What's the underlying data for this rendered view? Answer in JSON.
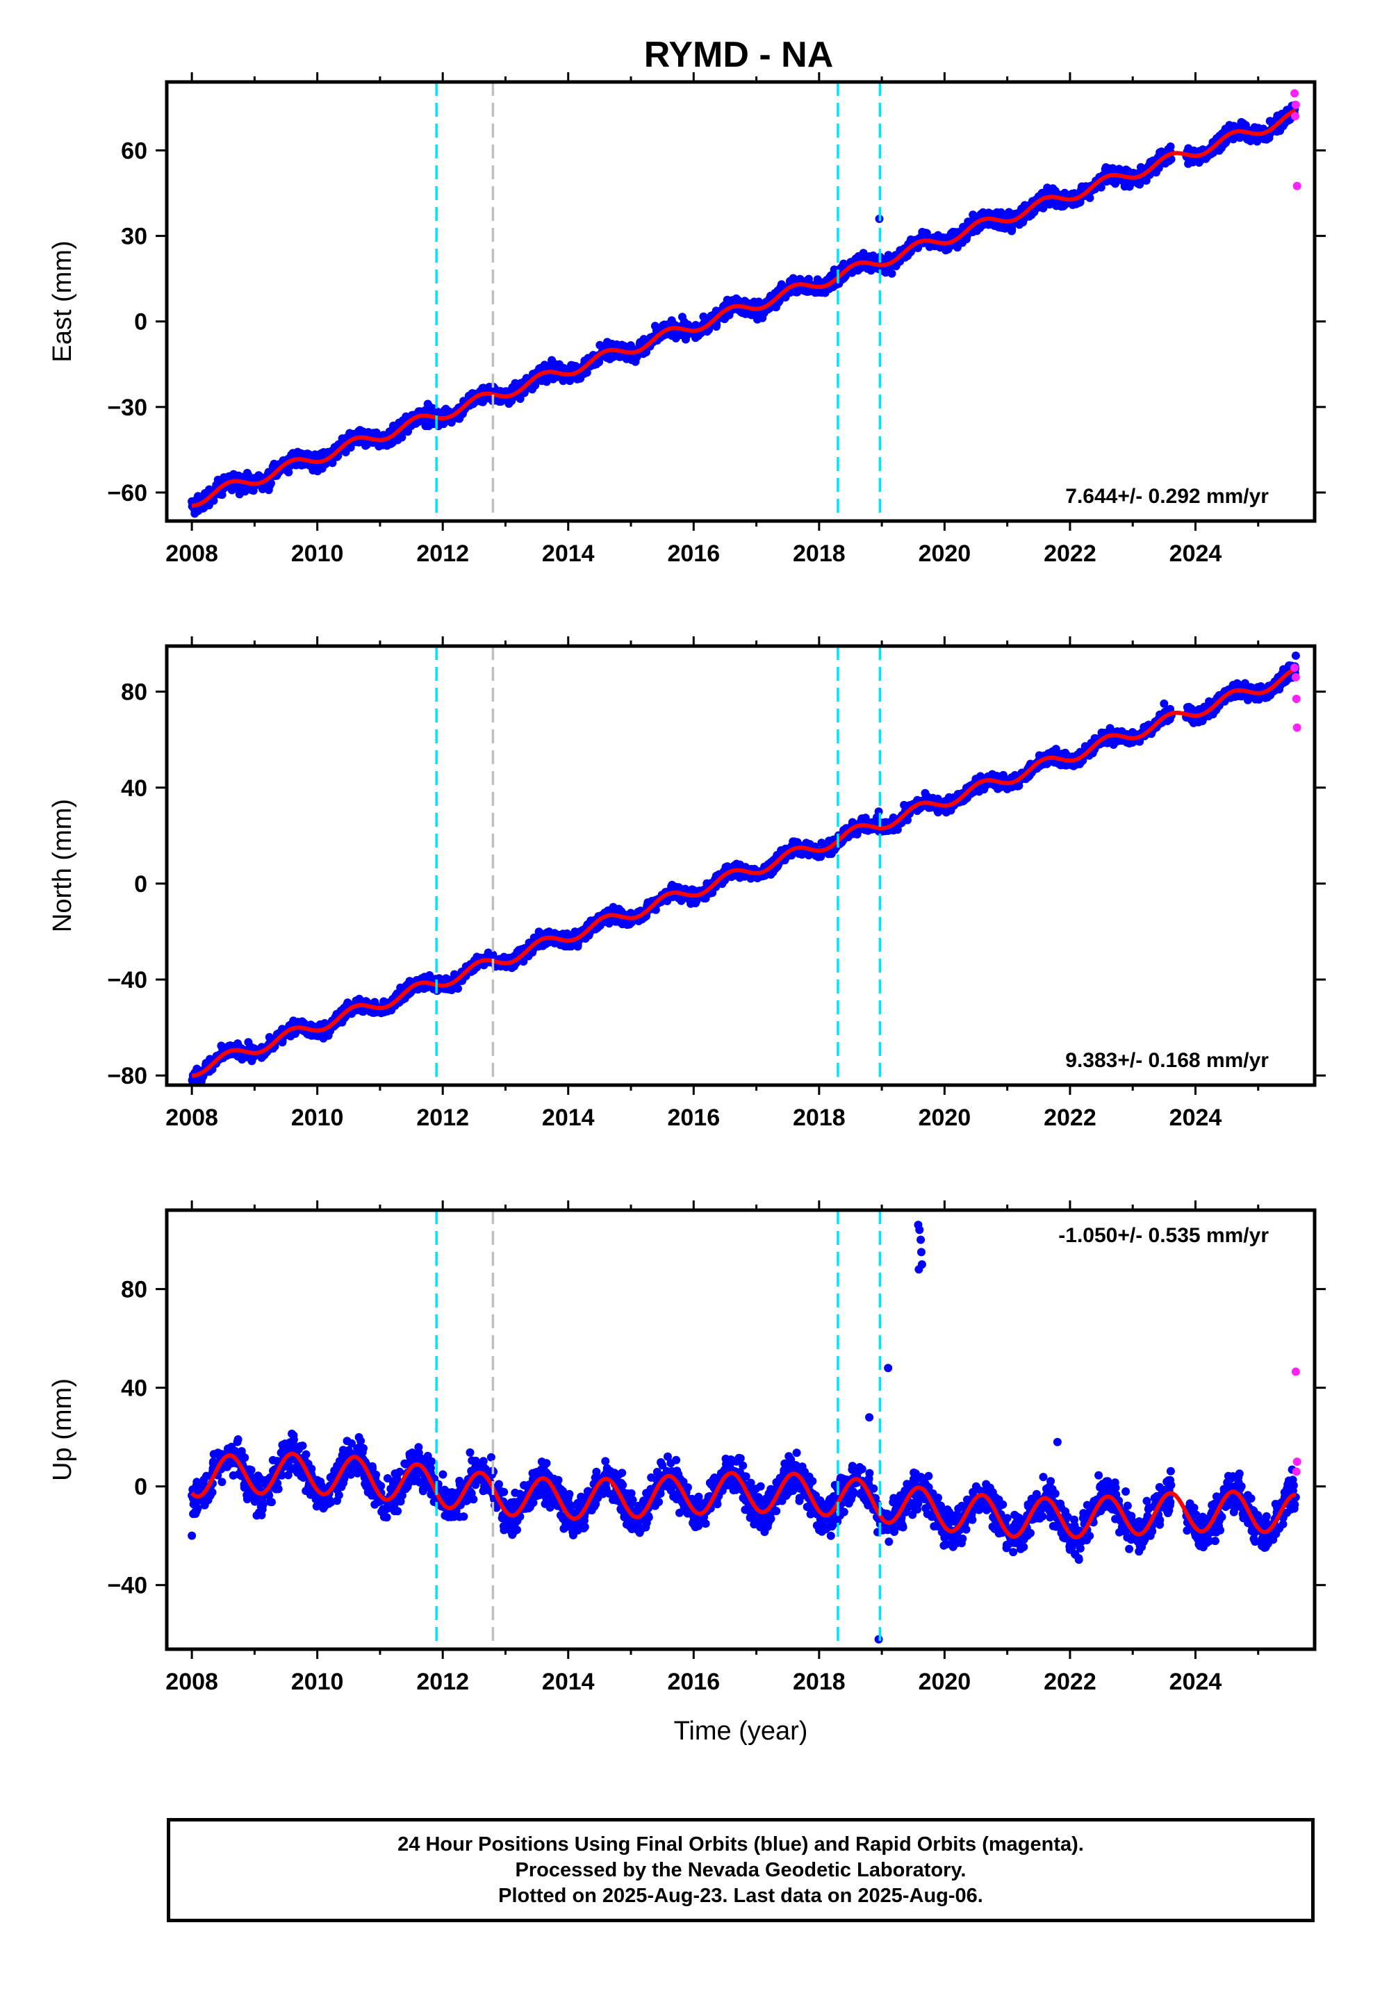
{
  "title": "RYMD - NA",
  "colors": {
    "final_points": "#0000ff",
    "rapid_points": "#ff22ff",
    "fit_line": "#ff0000",
    "equipment_change": "#00e5ff",
    "other_event": "#c0c0c0",
    "frame": "#000000"
  },
  "chart_data": [
    {
      "type": "scatter",
      "component": "east",
      "ylabel": "East (mm)",
      "xlabel": "",
      "xlim": [
        2007.6,
        2025.9
      ],
      "ylim": [
        -70,
        84
      ],
      "xticks": [
        "2008",
        "2010",
        "2012",
        "2014",
        "2016",
        "2018",
        "2020",
        "2022",
        "2024"
      ],
      "yticks": [
        "60",
        "30",
        "0",
        "−30",
        "−60"
      ],
      "ytick_values": [
        60,
        30,
        0,
        -30,
        -60
      ],
      "rate_label": "7.644+/- 0.292 mm/yr",
      "trend": {
        "x": [
          2008.0,
          2025.6
        ],
        "y": [
          -63,
          72
        ]
      },
      "seasonal_amplitude": 2.0,
      "scatter_amplitude": 2.0,
      "cyan_events": [
        2011.9,
        2018.3,
        2018.97
      ],
      "gray_events": [
        2012.8
      ],
      "rapid_points": {
        "x": [
          2025.58,
          2025.6,
          2025.62,
          2025.59
        ],
        "y": [
          80,
          76,
          47.5,
          72
        ]
      },
      "outliers": {
        "x": [
          2018.96
        ],
        "y": [
          36
        ]
      }
    },
    {
      "type": "scatter",
      "component": "north",
      "ylabel": "North (mm)",
      "xlabel": "",
      "xlim": [
        2007.6,
        2025.9
      ],
      "ylim": [
        -84,
        99
      ],
      "xticks": [
        "2008",
        "2010",
        "2012",
        "2014",
        "2016",
        "2018",
        "2020",
        "2022",
        "2024"
      ],
      "yticks": [
        "80",
        "40",
        "0",
        "−40",
        "−80"
      ],
      "ytick_values": [
        80,
        40,
        0,
        -40,
        -80
      ],
      "rate_label": "9.383+/- 0.168 mm/yr",
      "trend": {
        "x": [
          2008.0,
          2025.6
        ],
        "y": [
          -78,
          87
        ]
      },
      "seasonal_amplitude": 2.5,
      "scatter_amplitude": 2.0,
      "cyan_events": [
        2011.9,
        2018.3,
        2018.97
      ],
      "gray_events": [
        2012.8
      ],
      "rapid_points": {
        "x": [
          2025.58,
          2025.6,
          2025.61,
          2025.62
        ],
        "y": [
          90,
          86,
          77,
          65
        ]
      },
      "outliers": {
        "x": [
          2018.95,
          2023.5,
          2025.6
        ],
        "y": [
          30,
          75,
          95
        ]
      }
    },
    {
      "type": "scatter",
      "component": "up",
      "ylabel": "Up (mm)",
      "xlabel": "Time (year)",
      "xlim": [
        2007.6,
        2025.9
      ],
      "ylim": [
        -66,
        112
      ],
      "xticks": [
        "2008",
        "2010",
        "2012",
        "2014",
        "2016",
        "2018",
        "2020",
        "2022",
        "2024"
      ],
      "yticks": [
        "80",
        "40",
        "0",
        "−40"
      ],
      "ytick_values": [
        80,
        40,
        0,
        -40
      ],
      "rate_label": "-1.050+/- 0.535 mm/yr",
      "trend": {
        "x": [
          2008.0,
          2025.6
        ],
        "y": [
          4,
          -14
        ]
      },
      "seasonal_amplitude": 8.0,
      "scatter_amplitude": 5.5,
      "cyan_events": [
        2011.9,
        2018.3,
        2018.97
      ],
      "gray_events": [
        2012.8
      ],
      "rapid_points": {
        "x": [
          2025.6,
          2025.62,
          2025.61
        ],
        "y": [
          46.5,
          10,
          6
        ]
      },
      "outliers": {
        "x": [
          2018.95,
          2019.1,
          2019.58,
          2019.6,
          2019.62,
          2019.63,
          2019.64,
          2019.59,
          2018.8,
          2021.8,
          2008.0
        ],
        "y": [
          -62,
          48,
          106,
          104,
          100,
          95,
          90,
          88,
          28,
          18,
          -20
        ]
      }
    }
  ],
  "caption": {
    "line1": "24 Hour Positions Using Final Orbits (blue) and Rapid Orbits (magenta).",
    "line2": "Processed by the Nevada Geodetic Laboratory.",
    "line3": "Plotted on 2025-Aug-23. Last data on 2025-Aug-06."
  }
}
